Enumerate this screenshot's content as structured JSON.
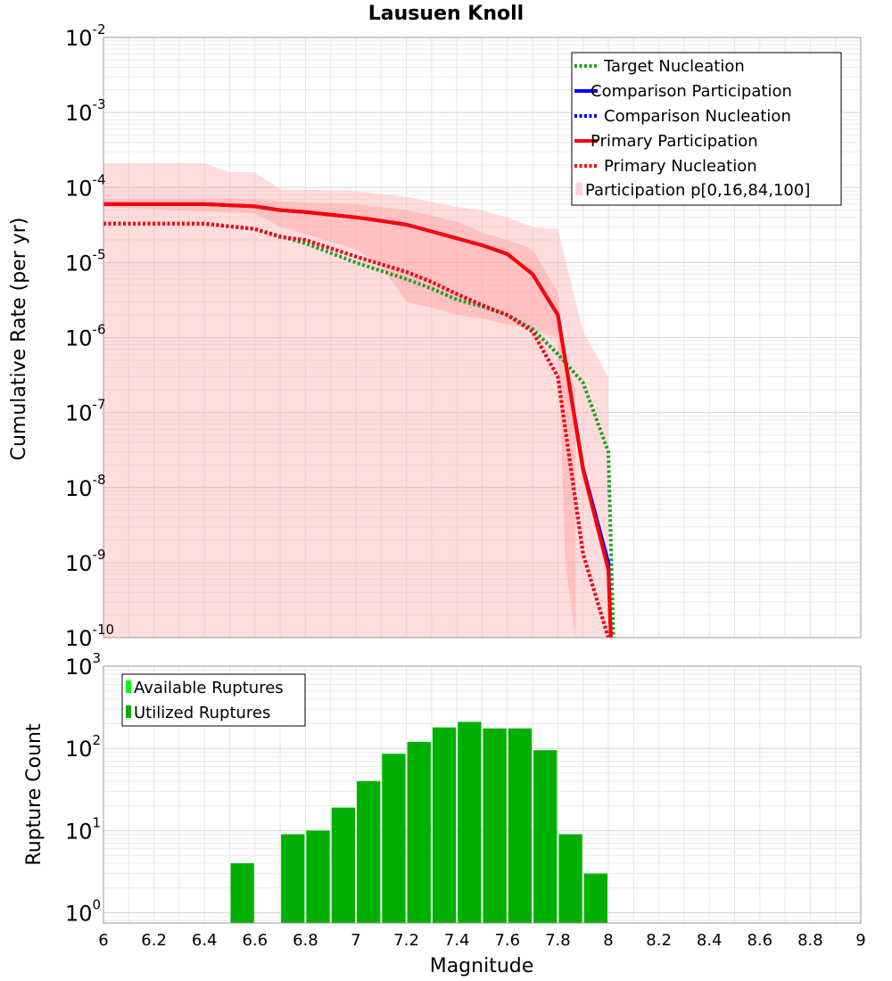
{
  "chart_data": [
    {
      "type": "line",
      "title": "Lausuen Knoll",
      "xlabel": "Magnitude",
      "ylabel": "Cumulative Rate (per yr)",
      "xlim": [
        6,
        9
      ],
      "ylim": [
        1e-10,
        0.01
      ],
      "yscale": "log",
      "grid": true,
      "legend_position": "top-right",
      "xticks": [
        "6",
        "6.2",
        "6.4",
        "6.6",
        "6.8",
        "7",
        "7.2",
        "7.4",
        "7.6",
        "7.8",
        "8",
        "8.2",
        "8.4",
        "8.6",
        "8.8",
        "9"
      ],
      "yticks": [
        {
          "base": "10",
          "exp": "-10"
        },
        {
          "base": "10",
          "exp": "-9"
        },
        {
          "base": "10",
          "exp": "-8"
        },
        {
          "base": "10",
          "exp": "-7"
        },
        {
          "base": "10",
          "exp": "-6"
        },
        {
          "base": "10",
          "exp": "-5"
        },
        {
          "base": "10",
          "exp": "-4"
        },
        {
          "base": "10",
          "exp": "-3"
        },
        {
          "base": "10",
          "exp": "-2"
        }
      ],
      "bands": [
        {
          "name": "Participation p[0,16,84,100]",
          "color": "#ff9f9f",
          "outer": {
            "x": [
              6.0,
              6.4,
              6.5,
              6.6,
              6.7,
              7.0,
              7.2,
              7.4,
              7.5,
              7.6,
              7.7,
              7.8,
              7.9,
              8.0
            ],
            "low": [
              1e-10,
              1e-10,
              1e-10,
              1e-10,
              1e-10,
              1e-10,
              1e-10,
              1e-10,
              1e-10,
              1e-10,
              1e-10,
              1e-10,
              1e-10,
              1e-10
            ],
            "high": [
              0.00021,
              0.00021,
              0.00016,
              0.00016,
              9.5e-05,
              9e-05,
              7.5e-05,
              5.5e-05,
              5e-05,
              4e-05,
              3e-05,
              2.8e-05,
              1.2e-06,
              3e-07
            ]
          },
          "inner": {
            "x": [
              6.0,
              6.6,
              6.7,
              7.0,
              7.1,
              7.2,
              7.3,
              7.4,
              7.5,
              7.6,
              7.7,
              7.8,
              7.83,
              7.87
            ],
            "low": [
              5.5e-05,
              4.5e-05,
              3e-05,
              1.5e-05,
              9e-06,
              3e-06,
              2.5e-06,
              2e-06,
              1.8e-06,
              1.5e-06,
              1.3e-06,
              1e-06,
              1e-09,
              1e-10
            ],
            "high": [
              7e-05,
              7e-05,
              6.5e-05,
              6e-05,
              5.5e-05,
              5e-05,
              4.2e-05,
              3.5e-05,
              2.5e-05,
              2e-05,
              1.5e-05,
              4e-06,
              5e-07,
              2e-07
            ]
          },
          "inner_extra": {
            "x": [
              7.6,
              7.63
            ],
            "note_low": [
              1.5e-06,
              1e-10
            ]
          }
        }
      ],
      "series": [
        {
          "name": "Target Nucleation",
          "color": "#22a022",
          "dash": "dotted",
          "x": [
            6.0,
            6.4,
            6.6,
            6.8,
            7.0,
            7.2,
            7.3,
            7.4,
            7.5,
            7.6,
            7.7,
            7.8,
            7.9,
            8.0,
            8.02
          ],
          "y": [
            3.3e-05,
            3.3e-05,
            2.8e-05,
            1.8e-05,
            1e-05,
            6e-06,
            4.5e-06,
            3.2e-06,
            2.6e-06,
            2e-06,
            1.3e-06,
            6e-07,
            2.5e-07,
            3e-08,
            1e-10
          ]
        },
        {
          "name": "Comparison Participation",
          "color": "#0000ff",
          "dash": "solid",
          "x": [
            6.0,
            6.4,
            6.6,
            6.7,
            6.8,
            7.0,
            7.1,
            7.2,
            7.3,
            7.4,
            7.5,
            7.6,
            7.7,
            7.8,
            7.9,
            8.0,
            8.01
          ],
          "y": [
            6e-05,
            6e-05,
            5.6e-05,
            5e-05,
            4.7e-05,
            4e-05,
            3.6e-05,
            3.2e-05,
            2.6e-05,
            2.1e-05,
            1.7e-05,
            1.3e-05,
            7e-06,
            2e-06,
            1.8e-08,
            1e-09,
            1e-10
          ]
        },
        {
          "name": "Comparison Nucleation",
          "color": "#0000ff",
          "dash": "dotted",
          "x": [
            6.0,
            6.4,
            6.6,
            6.7,
            6.8,
            7.0,
            7.2,
            7.3,
            7.4,
            7.5,
            7.6,
            7.7,
            7.8,
            7.9,
            8.0
          ],
          "y": [
            3.3e-05,
            3.3e-05,
            2.8e-05,
            2.2e-05,
            2e-05,
            1.2e-05,
            7.5e-06,
            5.5e-06,
            3.8e-06,
            2.7e-06,
            2e-06,
            1.2e-06,
            3e-07,
            1.3e-09,
            1e-10
          ]
        },
        {
          "name": "Primary Participation",
          "color": "#ff0000",
          "dash": "solid",
          "x": [
            6.0,
            6.4,
            6.6,
            6.7,
            6.8,
            7.0,
            7.1,
            7.2,
            7.3,
            7.4,
            7.5,
            7.6,
            7.7,
            7.8,
            7.9,
            8.0,
            8.01
          ],
          "y": [
            6e-05,
            6e-05,
            5.6e-05,
            5e-05,
            4.7e-05,
            4e-05,
            3.6e-05,
            3.2e-05,
            2.6e-05,
            2.1e-05,
            1.7e-05,
            1.3e-05,
            7e-06,
            2e-06,
            1.7e-08,
            8e-10,
            1e-10
          ]
        },
        {
          "name": "Primary Nucleation",
          "color": "#ff0000",
          "dash": "dotted",
          "x": [
            6.0,
            6.4,
            6.6,
            6.7,
            6.8,
            7.0,
            7.2,
            7.3,
            7.4,
            7.5,
            7.6,
            7.7,
            7.8,
            7.9,
            8.0
          ],
          "y": [
            3.3e-05,
            3.3e-05,
            2.8e-05,
            2.2e-05,
            2e-05,
            1.2e-05,
            7.5e-06,
            5.5e-06,
            3.8e-06,
            2.7e-06,
            2e-06,
            1.2e-06,
            3e-07,
            1.3e-09,
            1e-10
          ]
        }
      ]
    },
    {
      "type": "bar",
      "xlabel": "Magnitude",
      "ylabel": "Rupture Count",
      "xlim": [
        6,
        9
      ],
      "ylim": [
        0.75,
        1000
      ],
      "yscale": "log",
      "grid": true,
      "legend_position": "top-left",
      "yticks": [
        {
          "base": "10",
          "exp": "0"
        },
        {
          "base": "10",
          "exp": "1"
        },
        {
          "base": "10",
          "exp": "2"
        },
        {
          "base": "10",
          "exp": "3"
        }
      ],
      "bar_width": 0.1,
      "categories": [
        6.55,
        6.75,
        6.85,
        6.95,
        7.05,
        7.15,
        7.25,
        7.35,
        7.45,
        7.55,
        7.65,
        7.75,
        7.85,
        7.95
      ],
      "series": [
        {
          "name": "Available Ruptures",
          "color": "#00ff00",
          "values": [
            4,
            9,
            10,
            19,
            40,
            86,
            120,
            180,
            210,
            175,
            175,
            95,
            9,
            3
          ]
        },
        {
          "name": "Utilized Ruptures",
          "color": "#00b000",
          "values": [
            4,
            9,
            10,
            19,
            40,
            86,
            120,
            180,
            210,
            175,
            175,
            95,
            9,
            3
          ]
        }
      ]
    }
  ]
}
